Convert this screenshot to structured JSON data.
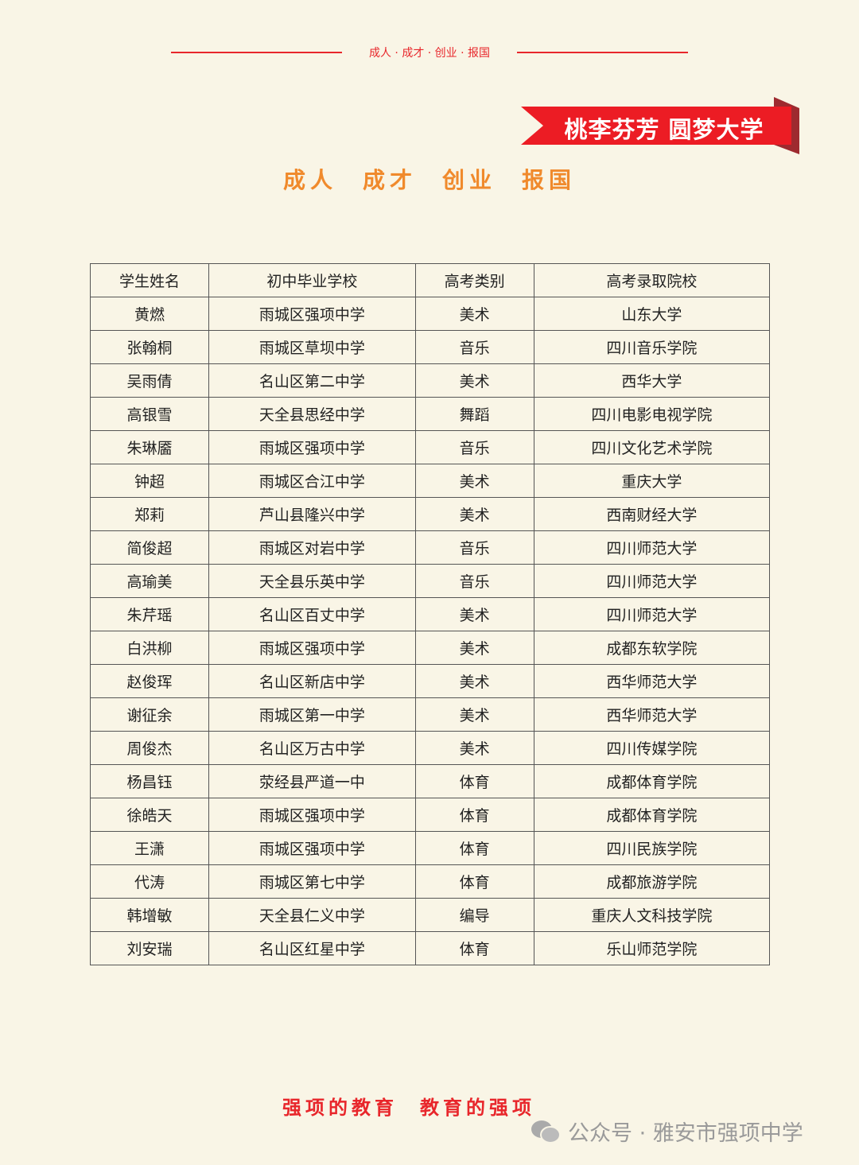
{
  "header": {
    "motto_small": "成人 · 成才 · 创业 · 报国",
    "banner": "桃李芬芳 圆梦大学",
    "slogan": [
      "成人",
      "成才",
      "创业",
      "报国"
    ]
  },
  "table": {
    "headers": [
      "学生姓名",
      "初中毕业学校",
      "高考类别",
      "高考录取院校"
    ],
    "rows": [
      [
        "黄燃",
        "雨城区强项中学",
        "美术",
        "山东大学"
      ],
      [
        "张翰桐",
        "雨城区草坝中学",
        "音乐",
        "四川音乐学院"
      ],
      [
        "吴雨倩",
        "名山区第二中学",
        "美术",
        "西华大学"
      ],
      [
        "高银雪",
        "天全县思经中学",
        "舞蹈",
        "四川电影电视学院"
      ],
      [
        "朱琳靥",
        "雨城区强项中学",
        "音乐",
        "四川文化艺术学院"
      ],
      [
        "钟超",
        "雨城区合江中学",
        "美术",
        "重庆大学"
      ],
      [
        "郑莉",
        "芦山县隆兴中学",
        "美术",
        "西南财经大学"
      ],
      [
        "简俊超",
        "雨城区对岩中学",
        "音乐",
        "四川师范大学"
      ],
      [
        "高瑜美",
        "天全县乐英中学",
        "音乐",
        "四川师范大学"
      ],
      [
        "朱芹瑶",
        "名山区百丈中学",
        "美术",
        "四川师范大学"
      ],
      [
        "白洪柳",
        "雨城区强项中学",
        "美术",
        "成都东软学院"
      ],
      [
        "赵俊珲",
        "名山区新店中学",
        "美术",
        "西华师范大学"
      ],
      [
        "谢征余",
        "雨城区第一中学",
        "美术",
        "西华师范大学"
      ],
      [
        "周俊杰",
        "名山区万古中学",
        "美术",
        "四川传媒学院"
      ],
      [
        "杨昌钰",
        "荥经县严道一中",
        "体育",
        "成都体育学院"
      ],
      [
        "徐皓天",
        "雨城区强项中学",
        "体育",
        "成都体育学院"
      ],
      [
        "王潇",
        "雨城区强项中学",
        "体育",
        "四川民族学院"
      ],
      [
        "代涛",
        "雨城区第七中学",
        "体育",
        "成都旅游学院"
      ],
      [
        "韩增敏",
        "天全县仁义中学",
        "编导",
        "重庆人文科技学院"
      ],
      [
        "刘安瑞",
        "名山区红星中学",
        "体育",
        "乐山师范学院"
      ]
    ]
  },
  "footer": {
    "slogan": [
      "强项的教育",
      "教育的强项"
    ],
    "watermark": "公众号 · 雅安市强项中学"
  },
  "colors": {
    "background": "#f9f5e6",
    "red": "#e8262b",
    "orange": "#f08a2c"
  }
}
